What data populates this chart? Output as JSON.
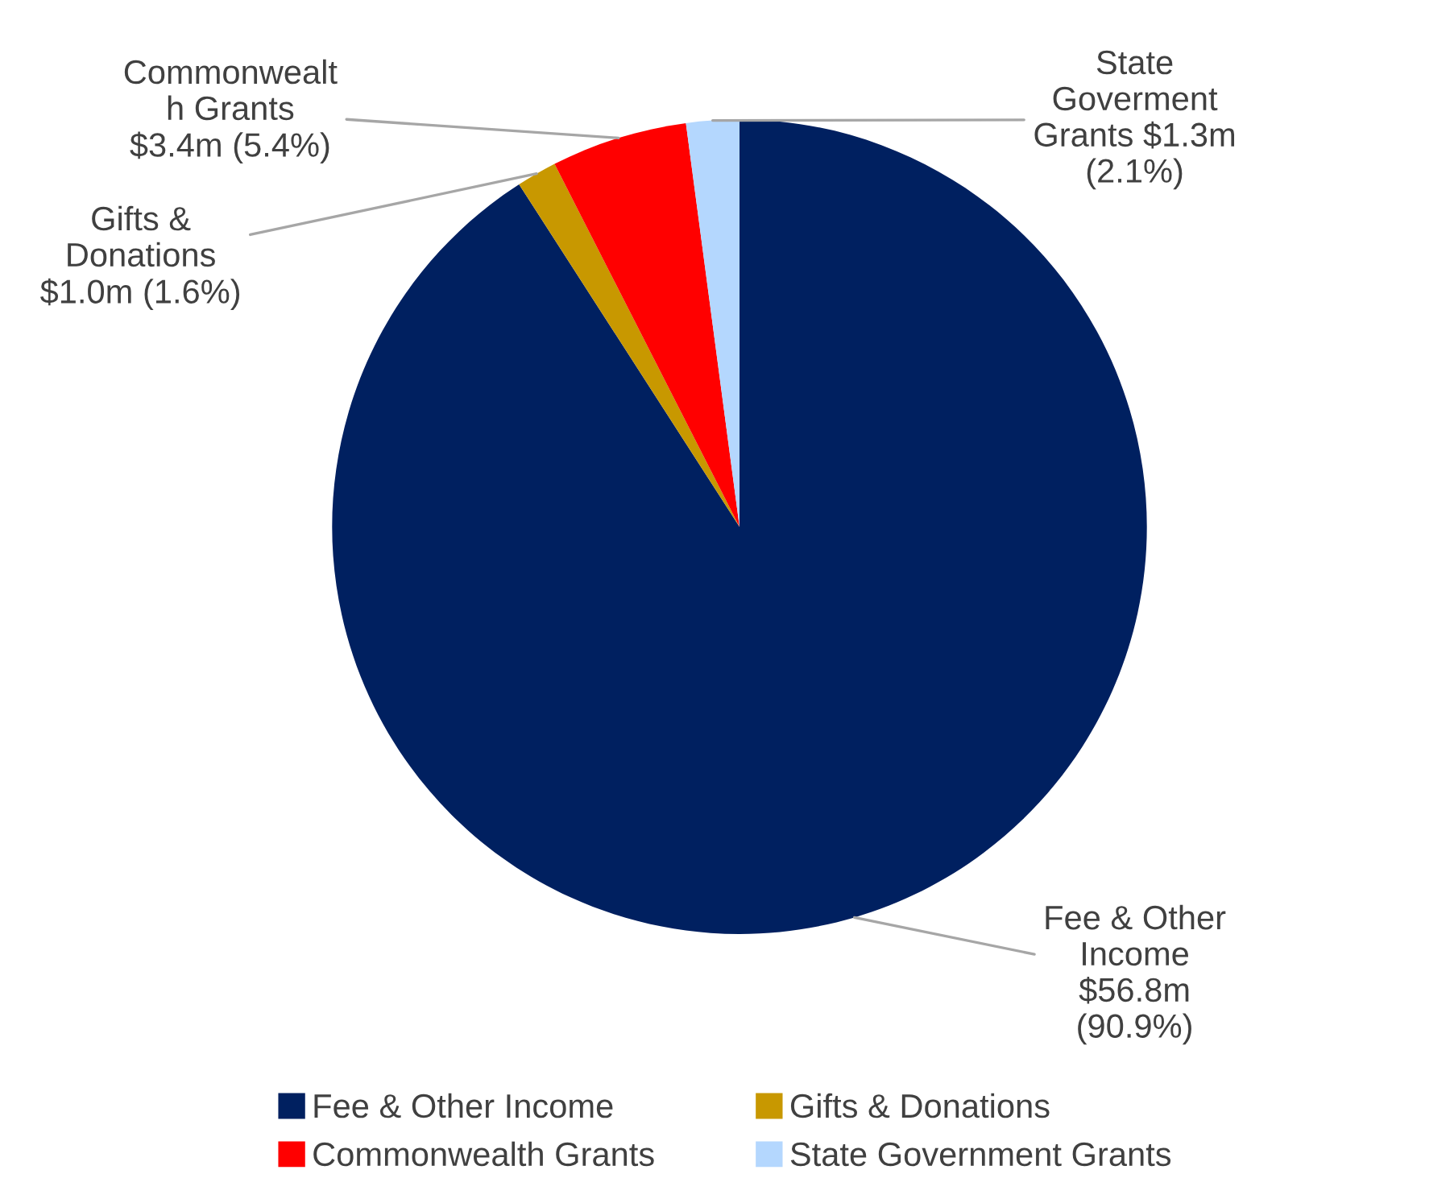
{
  "chart_data": {
    "type": "pie",
    "categories": [
      "Fee & Other Income",
      "Gifts & Donations",
      "Commonwealth Grants",
      "State Government Grants"
    ],
    "values": [
      90.9,
      1.6,
      5.4,
      2.1
    ],
    "colors": [
      "#002060",
      "#c89800",
      "#ff0000",
      "#b4d7fe"
    ],
    "value_labels": [
      "Fee & Other\nIncome\n$56.8m\n(90.9%)",
      "Gifts &\nDonations\n$1.0m (1.6%)",
      "Commonwealt\nh Grants\n$3.4m (5.4%)",
      "State\nGoverment\nGrants $1.3m\n(2.1%)"
    ],
    "legend": "bottom"
  }
}
